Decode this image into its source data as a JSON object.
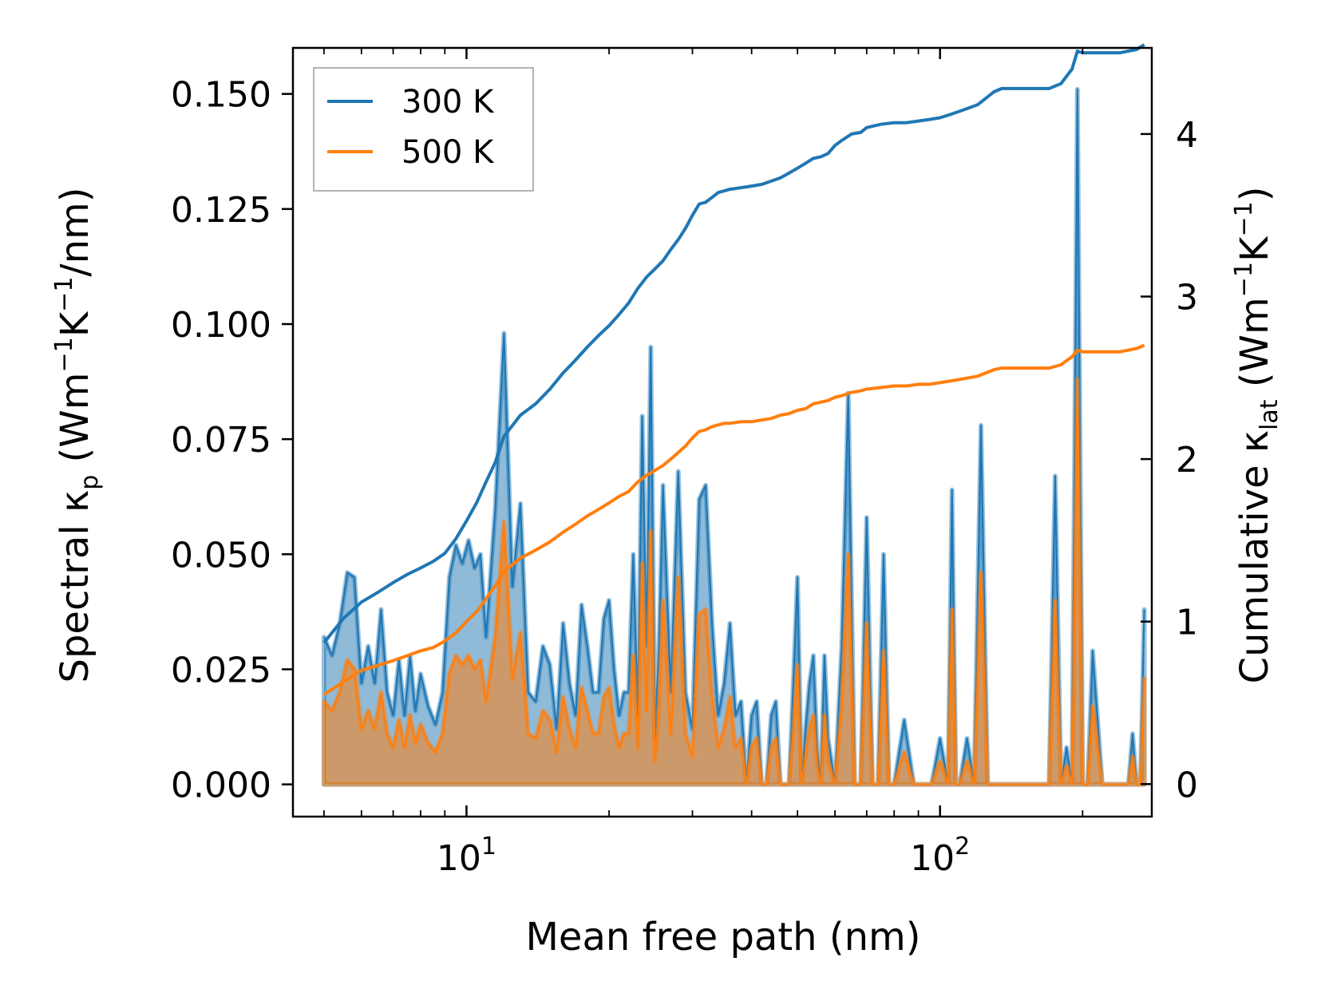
{
  "chart_data": {
    "type": "line",
    "title": "",
    "xlabel": "Mean free path (nm)",
    "ylabel_left": {
      "main": "Spectral κ",
      "sub": "p",
      "unit_a": " (Wm",
      "sup_a": "−1",
      "unit_b": "K",
      "sup_b": "−1",
      "unit_c": "/nm)"
    },
    "ylabel_right": {
      "main": "Cumulative κ",
      "sub": "lat",
      "unit_a": " (Wm",
      "sup_a": "−1",
      "unit_b": "K",
      "sup_b": "−1",
      "unit_c": ")"
    },
    "xscale": "log",
    "xlim": [
      4.3,
      280
    ],
    "ylim_left": [
      -0.007,
      0.16
    ],
    "ylim_right": [
      -0.2,
      4.53
    ],
    "x_ticks": [
      {
        "value": 10,
        "base": "10",
        "exp": "1"
      },
      {
        "value": 100,
        "base": "10",
        "exp": "2"
      }
    ],
    "y_left_ticks": [
      {
        "value": 0.0,
        "label": "0.000"
      },
      {
        "value": 0.025,
        "label": "0.025"
      },
      {
        "value": 0.05,
        "label": "0.050"
      },
      {
        "value": 0.075,
        "label": "0.075"
      },
      {
        "value": 0.1,
        "label": "0.100"
      },
      {
        "value": 0.125,
        "label": "0.125"
      },
      {
        "value": 0.15,
        "label": "0.150"
      }
    ],
    "y_right_ticks": [
      {
        "value": 0,
        "label": "0"
      },
      {
        "value": 1,
        "label": "1"
      },
      {
        "value": 2,
        "label": "2"
      },
      {
        "value": 3,
        "label": "3"
      },
      {
        "value": 4,
        "label": "4"
      }
    ],
    "legend": {
      "position": "upper left",
      "entries": [
        "300 K",
        "500 K"
      ]
    },
    "series": [
      {
        "name": "300 K",
        "color": "#1f77b4",
        "spectral": {
          "x": [
            5,
            5.2,
            5.4,
            5.6,
            5.8,
            6.0,
            6.2,
            6.4,
            6.6,
            6.8,
            7.0,
            7.2,
            7.4,
            7.6,
            7.8,
            8.0,
            8.3,
            8.6,
            8.9,
            9.2,
            9.5,
            9.8,
            10.1,
            10.4,
            10.7,
            11.0,
            11.5,
            12.0,
            12.5,
            13.0,
            13.5,
            14.0,
            14.5,
            15.0,
            15.5,
            16.0,
            16.5,
            17.0,
            17.5,
            18.0,
            18.5,
            19.0,
            19.5,
            20.0,
            20.5,
            21.0,
            21.5,
            22.0,
            22.5,
            23.0,
            23.5,
            24.0,
            24.5,
            25.0,
            25.5,
            26.0,
            27.0,
            28.0,
            29.0,
            30.0,
            31.0,
            32.0,
            33.0,
            34.0,
            35.0,
            36.0,
            37.0,
            38.0,
            39.0,
            40.0,
            41.0,
            42.0,
            43.0,
            44.0,
            45.0,
            46.0,
            47.0,
            48.0,
            49.0,
            50.0,
            51.0,
            52.0,
            53.0,
            54.0,
            55.0,
            56.0,
            57.0,
            58.0,
            60.0,
            62.0,
            64.0,
            66.0,
            68.0,
            70.0,
            72.0,
            74.0,
            76.0,
            78.0,
            80.0,
            84.0,
            88.0,
            92.0,
            96.0,
            100.0,
            104.0,
            106.0,
            108.0,
            110.0,
            114.0,
            118.0,
            122.0,
            126.0,
            130.0,
            135.0,
            140.0,
            150.0,
            160.0,
            170.0,
            175.0,
            180.0,
            185.0,
            190.0,
            195.0,
            200.0,
            205.0,
            210.0,
            220.0,
            230.0,
            240.0,
            250.0,
            255.0,
            260.0,
            265.0,
            270.0
          ],
          "y": [
            0.032,
            0.028,
            0.035,
            0.046,
            0.045,
            0.022,
            0.03,
            0.022,
            0.038,
            0.02,
            0.015,
            0.027,
            0.015,
            0.028,
            0.016,
            0.024,
            0.017,
            0.013,
            0.02,
            0.045,
            0.052,
            0.048,
            0.053,
            0.047,
            0.05,
            0.032,
            0.06,
            0.098,
            0.043,
            0.061,
            0.02,
            0.018,
            0.03,
            0.026,
            0.012,
            0.035,
            0.022,
            0.015,
            0.039,
            0.03,
            0.02,
            0.02,
            0.036,
            0.04,
            0.025,
            0.015,
            0.02,
            0.02,
            0.05,
            0.015,
            0.08,
            0.03,
            0.095,
            0.01,
            0.03,
            0.065,
            0.02,
            0.068,
            0.02,
            0.012,
            0.062,
            0.065,
            0.035,
            0.015,
            0.022,
            0.035,
            0.015,
            0.018,
            0.0,
            0.015,
            0.018,
            0.0,
            0.0,
            0.015,
            0.018,
            0.0,
            0.0,
            0.0,
            0.022,
            0.045,
            0.0,
            0.012,
            0.022,
            0.028,
            0.008,
            0.0,
            0.028,
            0.01,
            0.0,
            0.03,
            0.085,
            0.0,
            0.0,
            0.058,
            0.0,
            0.0,
            0.05,
            0.0,
            0.0,
            0.014,
            0.0,
            0.0,
            0.0,
            0.01,
            0.0,
            0.064,
            0.0,
            0.0,
            0.01,
            0.0,
            0.078,
            0.0,
            0.0,
            0.0,
            0.0,
            0.0,
            0.0,
            0.0,
            0.067,
            0.0,
            0.008,
            0.0,
            0.151,
            0.0,
            0.0,
            0.029,
            0.0,
            0.0,
            0.0,
            0.0,
            0.011,
            0.0,
            0.0,
            0.038
          ]
        },
        "cumulative": {
          "x": [
            5,
            5.5,
            6,
            6.5,
            7,
            7.5,
            8,
            8.5,
            9,
            9.5,
            10,
            10.5,
            11,
            11.5,
            12,
            13,
            14,
            15,
            16,
            17,
            18,
            19,
            20,
            21,
            22,
            23,
            24,
            25,
            26,
            27,
            28,
            29,
            30,
            31,
            32,
            33,
            34,
            35,
            36,
            38,
            40,
            42,
            44,
            46,
            48,
            50,
            52,
            54,
            56,
            58,
            60,
            62,
            65,
            68,
            70,
            75,
            80,
            85,
            90,
            95,
            100,
            105,
            110,
            115,
            120,
            125,
            130,
            135,
            140,
            150,
            160,
            170,
            180,
            190,
            195,
            200,
            220,
            240,
            260,
            270
          ],
          "y": [
            0.87,
            1.02,
            1.12,
            1.18,
            1.24,
            1.29,
            1.33,
            1.37,
            1.42,
            1.51,
            1.62,
            1.73,
            1.86,
            1.98,
            2.14,
            2.27,
            2.34,
            2.43,
            2.53,
            2.61,
            2.69,
            2.76,
            2.82,
            2.89,
            2.96,
            3.05,
            3.12,
            3.17,
            3.22,
            3.29,
            3.35,
            3.42,
            3.5,
            3.57,
            3.58,
            3.61,
            3.64,
            3.65,
            3.66,
            3.67,
            3.68,
            3.69,
            3.71,
            3.73,
            3.76,
            3.79,
            3.82,
            3.85,
            3.86,
            3.88,
            3.93,
            3.96,
            4.0,
            4.01,
            4.04,
            4.06,
            4.07,
            4.07,
            4.08,
            4.09,
            4.1,
            4.12,
            4.14,
            4.16,
            4.18,
            4.22,
            4.26,
            4.28,
            4.28,
            4.28,
            4.28,
            4.28,
            4.31,
            4.4,
            4.51,
            4.5,
            4.5,
            4.5,
            4.52,
            4.55
          ]
        }
      },
      {
        "name": "500 K",
        "color": "#ff7f0e",
        "spectral": {
          "x": [
            5,
            5.2,
            5.4,
            5.6,
            5.8,
            6.0,
            6.2,
            6.4,
            6.6,
            6.8,
            7.0,
            7.2,
            7.4,
            7.6,
            7.8,
            8.0,
            8.3,
            8.6,
            8.9,
            9.2,
            9.5,
            9.8,
            10.1,
            10.4,
            10.7,
            11.0,
            11.5,
            12.0,
            12.5,
            13.0,
            13.5,
            14.0,
            14.5,
            15.0,
            15.5,
            16.0,
            16.5,
            17.0,
            17.5,
            18.0,
            18.5,
            19.0,
            19.5,
            20.0,
            20.5,
            21.0,
            21.5,
            22.0,
            22.5,
            23.0,
            23.5,
            24.0,
            24.5,
            25.0,
            25.5,
            26.0,
            27.0,
            28.0,
            29.0,
            30.0,
            31.0,
            32.0,
            33.0,
            34.0,
            35.0,
            36.0,
            37.0,
            38.0,
            39.0,
            40.0,
            41.0,
            42.0,
            43.0,
            44.0,
            45.0,
            46.0,
            47.0,
            48.0,
            49.0,
            50.0,
            51.0,
            52.0,
            53.0,
            54.0,
            55.0,
            56.0,
            57.0,
            58.0,
            60.0,
            62.0,
            64.0,
            66.0,
            68.0,
            70.0,
            72.0,
            74.0,
            76.0,
            78.0,
            80.0,
            84.0,
            88.0,
            92.0,
            96.0,
            100.0,
            104.0,
            106.0,
            108.0,
            110.0,
            114.0,
            118.0,
            122.0,
            126.0,
            130.0,
            135.0,
            140.0,
            150.0,
            160.0,
            170.0,
            175.0,
            180.0,
            185.0,
            190.0,
            195.0,
            200.0,
            205.0,
            210.0,
            220.0,
            230.0,
            240.0,
            250.0,
            255.0,
            260.0,
            265.0,
            270.0
          ],
          "y": [
            0.018,
            0.016,
            0.02,
            0.027,
            0.025,
            0.012,
            0.016,
            0.012,
            0.02,
            0.011,
            0.008,
            0.014,
            0.008,
            0.015,
            0.009,
            0.013,
            0.009,
            0.007,
            0.011,
            0.024,
            0.028,
            0.026,
            0.028,
            0.025,
            0.027,
            0.018,
            0.032,
            0.057,
            0.023,
            0.033,
            0.011,
            0.01,
            0.016,
            0.014,
            0.007,
            0.019,
            0.012,
            0.008,
            0.021,
            0.016,
            0.011,
            0.011,
            0.019,
            0.021,
            0.013,
            0.008,
            0.011,
            0.011,
            0.028,
            0.008,
            0.048,
            0.016,
            0.055,
            0.005,
            0.016,
            0.04,
            0.011,
            0.045,
            0.011,
            0.006,
            0.037,
            0.038,
            0.019,
            0.008,
            0.012,
            0.019,
            0.008,
            0.01,
            0.0,
            0.008,
            0.01,
            0.0,
            0.0,
            0.008,
            0.01,
            0.0,
            0.0,
            0.0,
            0.012,
            0.026,
            0.0,
            0.006,
            0.012,
            0.015,
            0.004,
            0.0,
            0.015,
            0.005,
            0.0,
            0.017,
            0.05,
            0.0,
            0.0,
            0.035,
            0.0,
            0.0,
            0.029,
            0.0,
            0.0,
            0.007,
            0.0,
            0.0,
            0.0,
            0.005,
            0.0,
            0.038,
            0.0,
            0.0,
            0.005,
            0.0,
            0.046,
            0.0,
            0.0,
            0.0,
            0.0,
            0.0,
            0.0,
            0.0,
            0.04,
            0.0,
            0.004,
            0.0,
            0.088,
            0.0,
            0.0,
            0.017,
            0.0,
            0.0,
            0.0,
            0.0,
            0.006,
            0.0,
            0.0,
            0.023
          ]
        },
        "cumulative": {
          "x": [
            5,
            5.5,
            6,
            6.5,
            7,
            7.5,
            8,
            8.5,
            9,
            9.5,
            10,
            10.5,
            11,
            11.5,
            12,
            13,
            14,
            15,
            16,
            17,
            18,
            19,
            20,
            21,
            22,
            23,
            24,
            25,
            26,
            27,
            28,
            29,
            30,
            31,
            32,
            33,
            34,
            35,
            36,
            38,
            40,
            42,
            44,
            46,
            48,
            50,
            52,
            54,
            56,
            58,
            60,
            62,
            65,
            68,
            70,
            75,
            80,
            85,
            90,
            95,
            100,
            105,
            110,
            115,
            120,
            125,
            130,
            135,
            140,
            150,
            160,
            170,
            180,
            190,
            195,
            200,
            220,
            240,
            260,
            270
          ],
          "y": [
            0.55,
            0.63,
            0.7,
            0.73,
            0.76,
            0.79,
            0.82,
            0.84,
            0.88,
            0.93,
            1.0,
            1.06,
            1.14,
            1.22,
            1.31,
            1.39,
            1.44,
            1.49,
            1.55,
            1.6,
            1.65,
            1.69,
            1.73,
            1.77,
            1.8,
            1.86,
            1.9,
            1.93,
            1.96,
            2.0,
            2.04,
            2.08,
            2.13,
            2.17,
            2.18,
            2.2,
            2.21,
            2.22,
            2.22,
            2.23,
            2.23,
            2.24,
            2.25,
            2.27,
            2.28,
            2.3,
            2.31,
            2.34,
            2.35,
            2.36,
            2.38,
            2.39,
            2.41,
            2.42,
            2.43,
            2.44,
            2.45,
            2.45,
            2.46,
            2.46,
            2.47,
            2.48,
            2.49,
            2.5,
            2.51,
            2.53,
            2.55,
            2.56,
            2.56,
            2.56,
            2.56,
            2.56,
            2.58,
            2.63,
            2.67,
            2.66,
            2.66,
            2.66,
            2.68,
            2.7
          ]
        }
      }
    ]
  }
}
